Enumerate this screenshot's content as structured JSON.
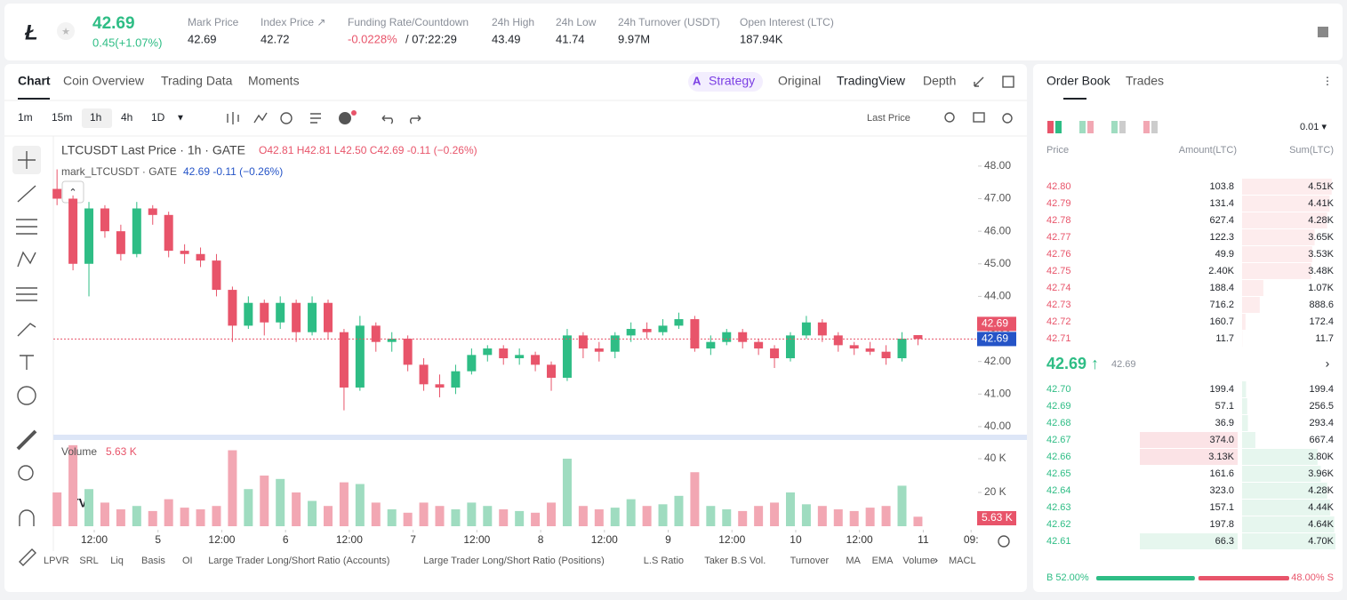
{
  "header": {
    "price": "42.69",
    "change": "0.45(+1.07%)",
    "stats": [
      {
        "label": "Mark Price",
        "value": "42.69"
      },
      {
        "label": "Index Price ↗",
        "value": "42.72"
      },
      {
        "label": "Funding Rate/Countdown",
        "value": "-0.0228%",
        "value2": "/ 07:22:29"
      },
      {
        "label": "24h High",
        "value": "43.49"
      },
      {
        "label": "24h Low",
        "value": "41.74"
      },
      {
        "label": "24h Turnover (USDT)",
        "value": "9.97M"
      },
      {
        "label": "Open Interest (LTC)",
        "value": "187.94K"
      }
    ]
  },
  "chart_tabs": [
    "Chart",
    "Coin Overview",
    "Trading Data",
    "Moments"
  ],
  "strategy": "Strategy",
  "view_tabs": [
    "Original",
    "TradingView",
    "Depth"
  ],
  "intervals": [
    "1m",
    "15m",
    "1h",
    "4h",
    "1D"
  ],
  "price_source": "Last Price",
  "chart_data": {
    "type": "candlestick",
    "title": "LTCUSDT Last Price · 1h · GATE",
    "ohlc_label": "O42.81 H42.81 L42.50 C42.69 -0.11 (−0.26%)",
    "mark_label": "mark_LTCUSDT · GATE",
    "mark_values": "42.69 -0.11 (−0.26%)",
    "x": [
      -7,
      -4,
      -1,
      2,
      5,
      8,
      11,
      14,
      17,
      20,
      23,
      26,
      29,
      32,
      35,
      38,
      41,
      44,
      47,
      50,
      53,
      56,
      59,
      62,
      65,
      68,
      71,
      74,
      77,
      80,
      83,
      86,
      89,
      92,
      95,
      98,
      101,
      104,
      107,
      110,
      113,
      116,
      119,
      122,
      125,
      128,
      131,
      134,
      137,
      140,
      143,
      146,
      149,
      152,
      155
    ],
    "open": [
      47.3,
      47.0,
      45.0,
      46.7,
      46.0,
      45.3,
      46.7,
      46.5,
      45.4,
      45.3,
      45.1,
      44.2,
      43.1,
      43.8,
      43.2,
      43.8,
      42.9,
      43.8,
      42.9,
      41.2,
      43.1,
      42.6,
      42.7,
      41.9,
      41.3,
      41.2,
      41.7,
      42.2,
      42.4,
      42.1,
      42.2,
      41.9,
      41.5,
      42.8,
      42.4,
      42.3,
      42.8,
      43.0,
      42.9,
      43.1,
      43.3,
      42.4,
      42.6,
      42.9,
      42.6,
      42.4,
      42.1,
      42.8,
      43.2,
      42.8,
      42.5,
      42.4,
      42.3,
      42.1,
      42.81
    ],
    "high": [
      47.9,
      47.1,
      46.9,
      46.8,
      46.2,
      46.9,
      46.8,
      46.6,
      45.6,
      45.5,
      45.3,
      44.3,
      44.0,
      43.9,
      44.0,
      43.9,
      44.0,
      43.9,
      43.0,
      43.4,
      43.2,
      42.9,
      42.8,
      42.1,
      41.6,
      41.9,
      42.4,
      42.5,
      42.5,
      42.4,
      42.3,
      42.0,
      43.0,
      42.9,
      42.6,
      42.9,
      43.2,
      43.2,
      43.3,
      43.5,
      43.4,
      42.8,
      43.0,
      43.0,
      42.7,
      42.5,
      42.9,
      43.4,
      43.3,
      42.9,
      42.6,
      42.6,
      42.5,
      42.9,
      42.81
    ],
    "low": [
      46.8,
      44.8,
      44.0,
      45.8,
      45.1,
      45.2,
      46.2,
      45.2,
      45.0,
      44.9,
      44.0,
      42.6,
      43.0,
      42.8,
      43.0,
      42.6,
      42.8,
      42.7,
      40.5,
      41.1,
      42.3,
      42.3,
      41.7,
      41.1,
      40.9,
      41.0,
      41.6,
      42.0,
      41.9,
      41.9,
      41.7,
      41.1,
      41.4,
      42.1,
      42.0,
      42.1,
      42.6,
      42.7,
      42.8,
      43.0,
      42.3,
      42.2,
      42.5,
      42.4,
      42.2,
      41.8,
      42.0,
      42.7,
      42.6,
      42.3,
      42.2,
      42.2,
      41.9,
      42.0,
      42.5
    ],
    "close": [
      47.0,
      45.0,
      46.7,
      46.0,
      45.3,
      46.7,
      46.5,
      45.4,
      45.3,
      45.1,
      44.2,
      43.1,
      43.8,
      43.2,
      43.8,
      42.9,
      43.8,
      42.9,
      41.2,
      43.1,
      42.6,
      42.7,
      41.9,
      41.3,
      41.2,
      41.7,
      42.2,
      42.4,
      42.1,
      42.2,
      41.9,
      41.5,
      42.8,
      42.4,
      42.3,
      42.8,
      43.0,
      42.9,
      43.1,
      43.3,
      42.4,
      42.6,
      42.9,
      42.6,
      42.4,
      42.1,
      42.8,
      43.2,
      42.8,
      42.5,
      42.4,
      42.3,
      42.1,
      42.7,
      42.69
    ],
    "volume": [
      20,
      48,
      22,
      14,
      10,
      12,
      9,
      16,
      11,
      10,
      12,
      45,
      22,
      30,
      28,
      20,
      15,
      12,
      26,
      25,
      14,
      10,
      8,
      14,
      12,
      10,
      14,
      12,
      10,
      9,
      8,
      14,
      40,
      12,
      10,
      11,
      16,
      12,
      13,
      18,
      32,
      12,
      10,
      9,
      12,
      14,
      20,
      13,
      12,
      10,
      9,
      11,
      12,
      24,
      5.63
    ],
    "up_color": "#2ebd85",
    "down_color": "#e8546a",
    "up_volume_color": "#9fdcc0",
    "down_volume_color": "#f2a7b3",
    "xlim": [
      -8,
      166
    ],
    "xticks": [
      {
        "value": 0,
        "label": "12:00"
      },
      {
        "value": 12,
        "label": "5"
      },
      {
        "value": 24,
        "label": "12:00"
      },
      {
        "value": 36,
        "label": "6"
      },
      {
        "value": 48,
        "label": "12:00"
      },
      {
        "value": 60,
        "label": "7"
      },
      {
        "value": 72,
        "label": "12:00"
      },
      {
        "value": 84,
        "label": "8"
      },
      {
        "value": 96,
        "label": "12:00"
      },
      {
        "value": 108,
        "label": "9"
      },
      {
        "value": 120,
        "label": "12:00"
      },
      {
        "value": 132,
        "label": "10"
      },
      {
        "value": 144,
        "label": "12:00"
      },
      {
        "value": 156,
        "label": "11"
      },
      {
        "value": 165,
        "label": "09:"
      }
    ],
    "ylim": [
      39.78,
      48.87
    ],
    "yticks": [
      {
        "value": 40,
        "label": "40.00"
      },
      {
        "value": 41,
        "label": "41.00"
      },
      {
        "value": 42,
        "label": "42.00"
      },
      {
        "value": 43,
        "label": "43.00"
      },
      {
        "value": 44,
        "label": "44.00"
      },
      {
        "value": 45,
        "label": "45.00"
      },
      {
        "value": 46,
        "label": "46.00"
      },
      {
        "value": 47,
        "label": "47.00"
      },
      {
        "value": 48,
        "label": "48.00"
      }
    ],
    "last_price": {
      "value": 42.69,
      "label": "42.69"
    },
    "volume_title": "Volume",
    "volume_last_label": "5.63 K",
    "volume_ylim": [
      0,
      49.5
    ],
    "volume_yticks": [
      {
        "value": 20,
        "label": "20 K"
      },
      {
        "value": 40,
        "label": "40 K"
      }
    ]
  },
  "indicators": [
    "LPVR",
    "SRL",
    "Liq",
    "Basis",
    "OI",
    "Large Trader Long/Short Ratio (Accounts)",
    "Large Trader Long/Short Ratio (Positions)",
    "L.S Ratio",
    "Taker B.S Vol.",
    "Turnover",
    "MA",
    "EMA",
    "Volume",
    "MACL"
  ],
  "order_book": {
    "tabs": [
      "Order Book",
      "Trades"
    ],
    "precision": "0.01 ▾",
    "headers": [
      "Price",
      "Amount(LTC)",
      "Sum(LTC)"
    ],
    "asks": [
      [
        "42.80",
        "103.8",
        "4.51K"
      ],
      [
        "42.79",
        "131.4",
        "4.41K"
      ],
      [
        "42.78",
        "627.4",
        "4.28K"
      ],
      [
        "42.77",
        "122.3",
        "3.65K"
      ],
      [
        "42.76",
        "49.9",
        "3.53K"
      ],
      [
        "42.75",
        "2.40K",
        "3.48K"
      ],
      [
        "42.74",
        "188.4",
        "1.07K"
      ],
      [
        "42.73",
        "716.2",
        "888.6"
      ],
      [
        "42.72",
        "160.7",
        "172.4"
      ],
      [
        "42.71",
        "11.7",
        "11.7"
      ]
    ],
    "last_price": "42.69 ↑",
    "mark_price": "42.69",
    "bids": [
      [
        "42.70",
        "199.4",
        "199.4"
      ],
      [
        "42.69",
        "57.1",
        "256.5"
      ],
      [
        "42.68",
        "36.9",
        "293.4"
      ],
      [
        "42.67",
        "374.0",
        "667.4"
      ],
      [
        "42.66",
        "3.13K",
        "3.80K"
      ],
      [
        "42.65",
        "161.6",
        "3.96K"
      ],
      [
        "42.64",
        "323.0",
        "4.28K"
      ],
      [
        "42.63",
        "157.1",
        "4.44K"
      ],
      [
        "42.62",
        "197.8",
        "4.64K"
      ],
      [
        "42.61",
        "66.3",
        "4.70K"
      ]
    ],
    "buy_label": "B 52.00%",
    "sell_label": "48.00% S",
    "buy_pct": 52,
    "sell_pct": 48
  }
}
